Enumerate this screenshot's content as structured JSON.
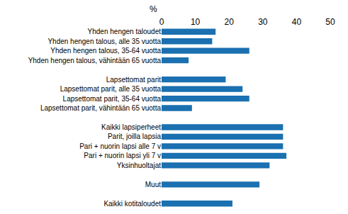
{
  "chart_data": {
    "type": "bar",
    "orientation": "horizontal",
    "xlabel": "%",
    "categories": [
      "Yhden hengen taloudet",
      "Yhden hengen talous, alle 35 vuotta",
      "Yhden hengen talous, 35-64 vuotta",
      "Yhden hengen talous, vähintään 65 vuotta",
      null,
      "Lapsettomat parit",
      "Lapsettomat parit, alle 35 vuotta",
      "Lapsettomat parit, 35-64 vuotta",
      "Lapsettomat parit, vähintään 65 vuotta",
      null,
      "Kaikki lapsiperheet",
      "Parit, joilla lapsia",
      "Pari + nuorin lapsi alle 7 v",
      "Pari + nuorin lapsi yli 7 v",
      "Yksinhuoltajat",
      null,
      "Muut",
      null,
      "Kaikki kotitaloudet"
    ],
    "values": [
      16,
      15,
      26,
      8,
      null,
      19,
      24,
      26,
      9,
      null,
      36,
      36,
      36,
      37,
      32,
      null,
      29,
      null,
      21
    ],
    "color": "#1a70b0",
    "xlim": [
      0,
      50
    ],
    "xticks": [
      0,
      10,
      20,
      30,
      40,
      50
    ],
    "grid": false
  }
}
